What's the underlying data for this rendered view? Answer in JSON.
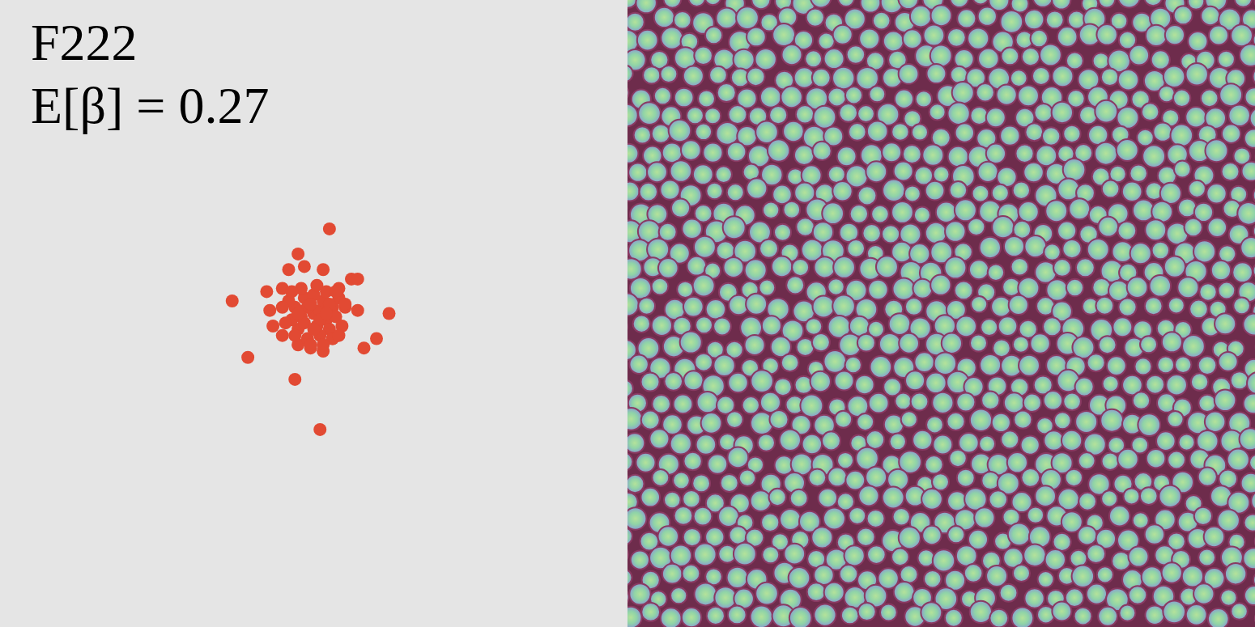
{
  "chart_data": {
    "type": "scatter",
    "title": "F222",
    "annotations": [
      "E[β] = 0.27"
    ],
    "x": [
      0.05,
      -0.26,
      -0.21,
      -0.06,
      0.02,
      0.24,
      0.2,
      0.16,
      0.12,
      0.14,
      -0.05,
      -0.03,
      -0.08,
      0.03,
      -0.15,
      -0.14,
      -0.13,
      -0.1,
      -0.1,
      0.14,
      0.08,
      0.1,
      -0.01,
      0.03,
      0.06,
      -0.05,
      0.0,
      0.02,
      -0.02,
      0.04,
      -0.04,
      0.01,
      0.03,
      -0.03,
      0.06,
      -0.06,
      0.05,
      -0.05,
      0.0,
      0.02,
      -0.02,
      0.07,
      -0.07,
      0.08,
      -0.08,
      0.04,
      -0.04,
      0.06,
      -0.06,
      0.09,
      -0.09,
      0.01,
      0.03,
      -0.01,
      0.1,
      -0.1,
      0.05,
      -0.01,
      0.02,
      -0.03,
      0.07,
      -0.07,
      0.08,
      0.0,
      0.04,
      -0.05
    ],
    "values": [
      0.27,
      0.04,
      -0.14,
      -0.21,
      -0.37,
      0.0,
      -0.08,
      -0.11,
      0.11,
      0.11,
      0.19,
      0.15,
      0.14,
      0.14,
      0.07,
      0.01,
      -0.04,
      -0.07,
      0.08,
      0.01,
      0.08,
      0.02,
      -0.11,
      -0.12,
      -0.08,
      -0.1,
      0.0,
      0.01,
      0.02,
      -0.02,
      -0.01,
      -0.04,
      0.04,
      0.05,
      0.02,
      0.02,
      -0.05,
      -0.05,
      0.06,
      -0.07,
      -0.08,
      -0.01,
      -0.02,
      0.05,
      0.04,
      0.07,
      0.08,
      -0.08,
      -0.07,
      -0.04,
      -0.03,
      0.09,
      -0.1,
      -0.1,
      0.03,
      0.02,
      0.03,
      0.03,
      -0.02,
      -0.03,
      0.07,
      0.07,
      -0.07,
      -0.05,
      0.0,
      0.0
    ],
    "color": "#e24a33",
    "xlim": [
      -1,
      1
    ],
    "ylim": [
      -1,
      1
    ],
    "tick_labels": false,
    "marker": "circle"
  }
}
